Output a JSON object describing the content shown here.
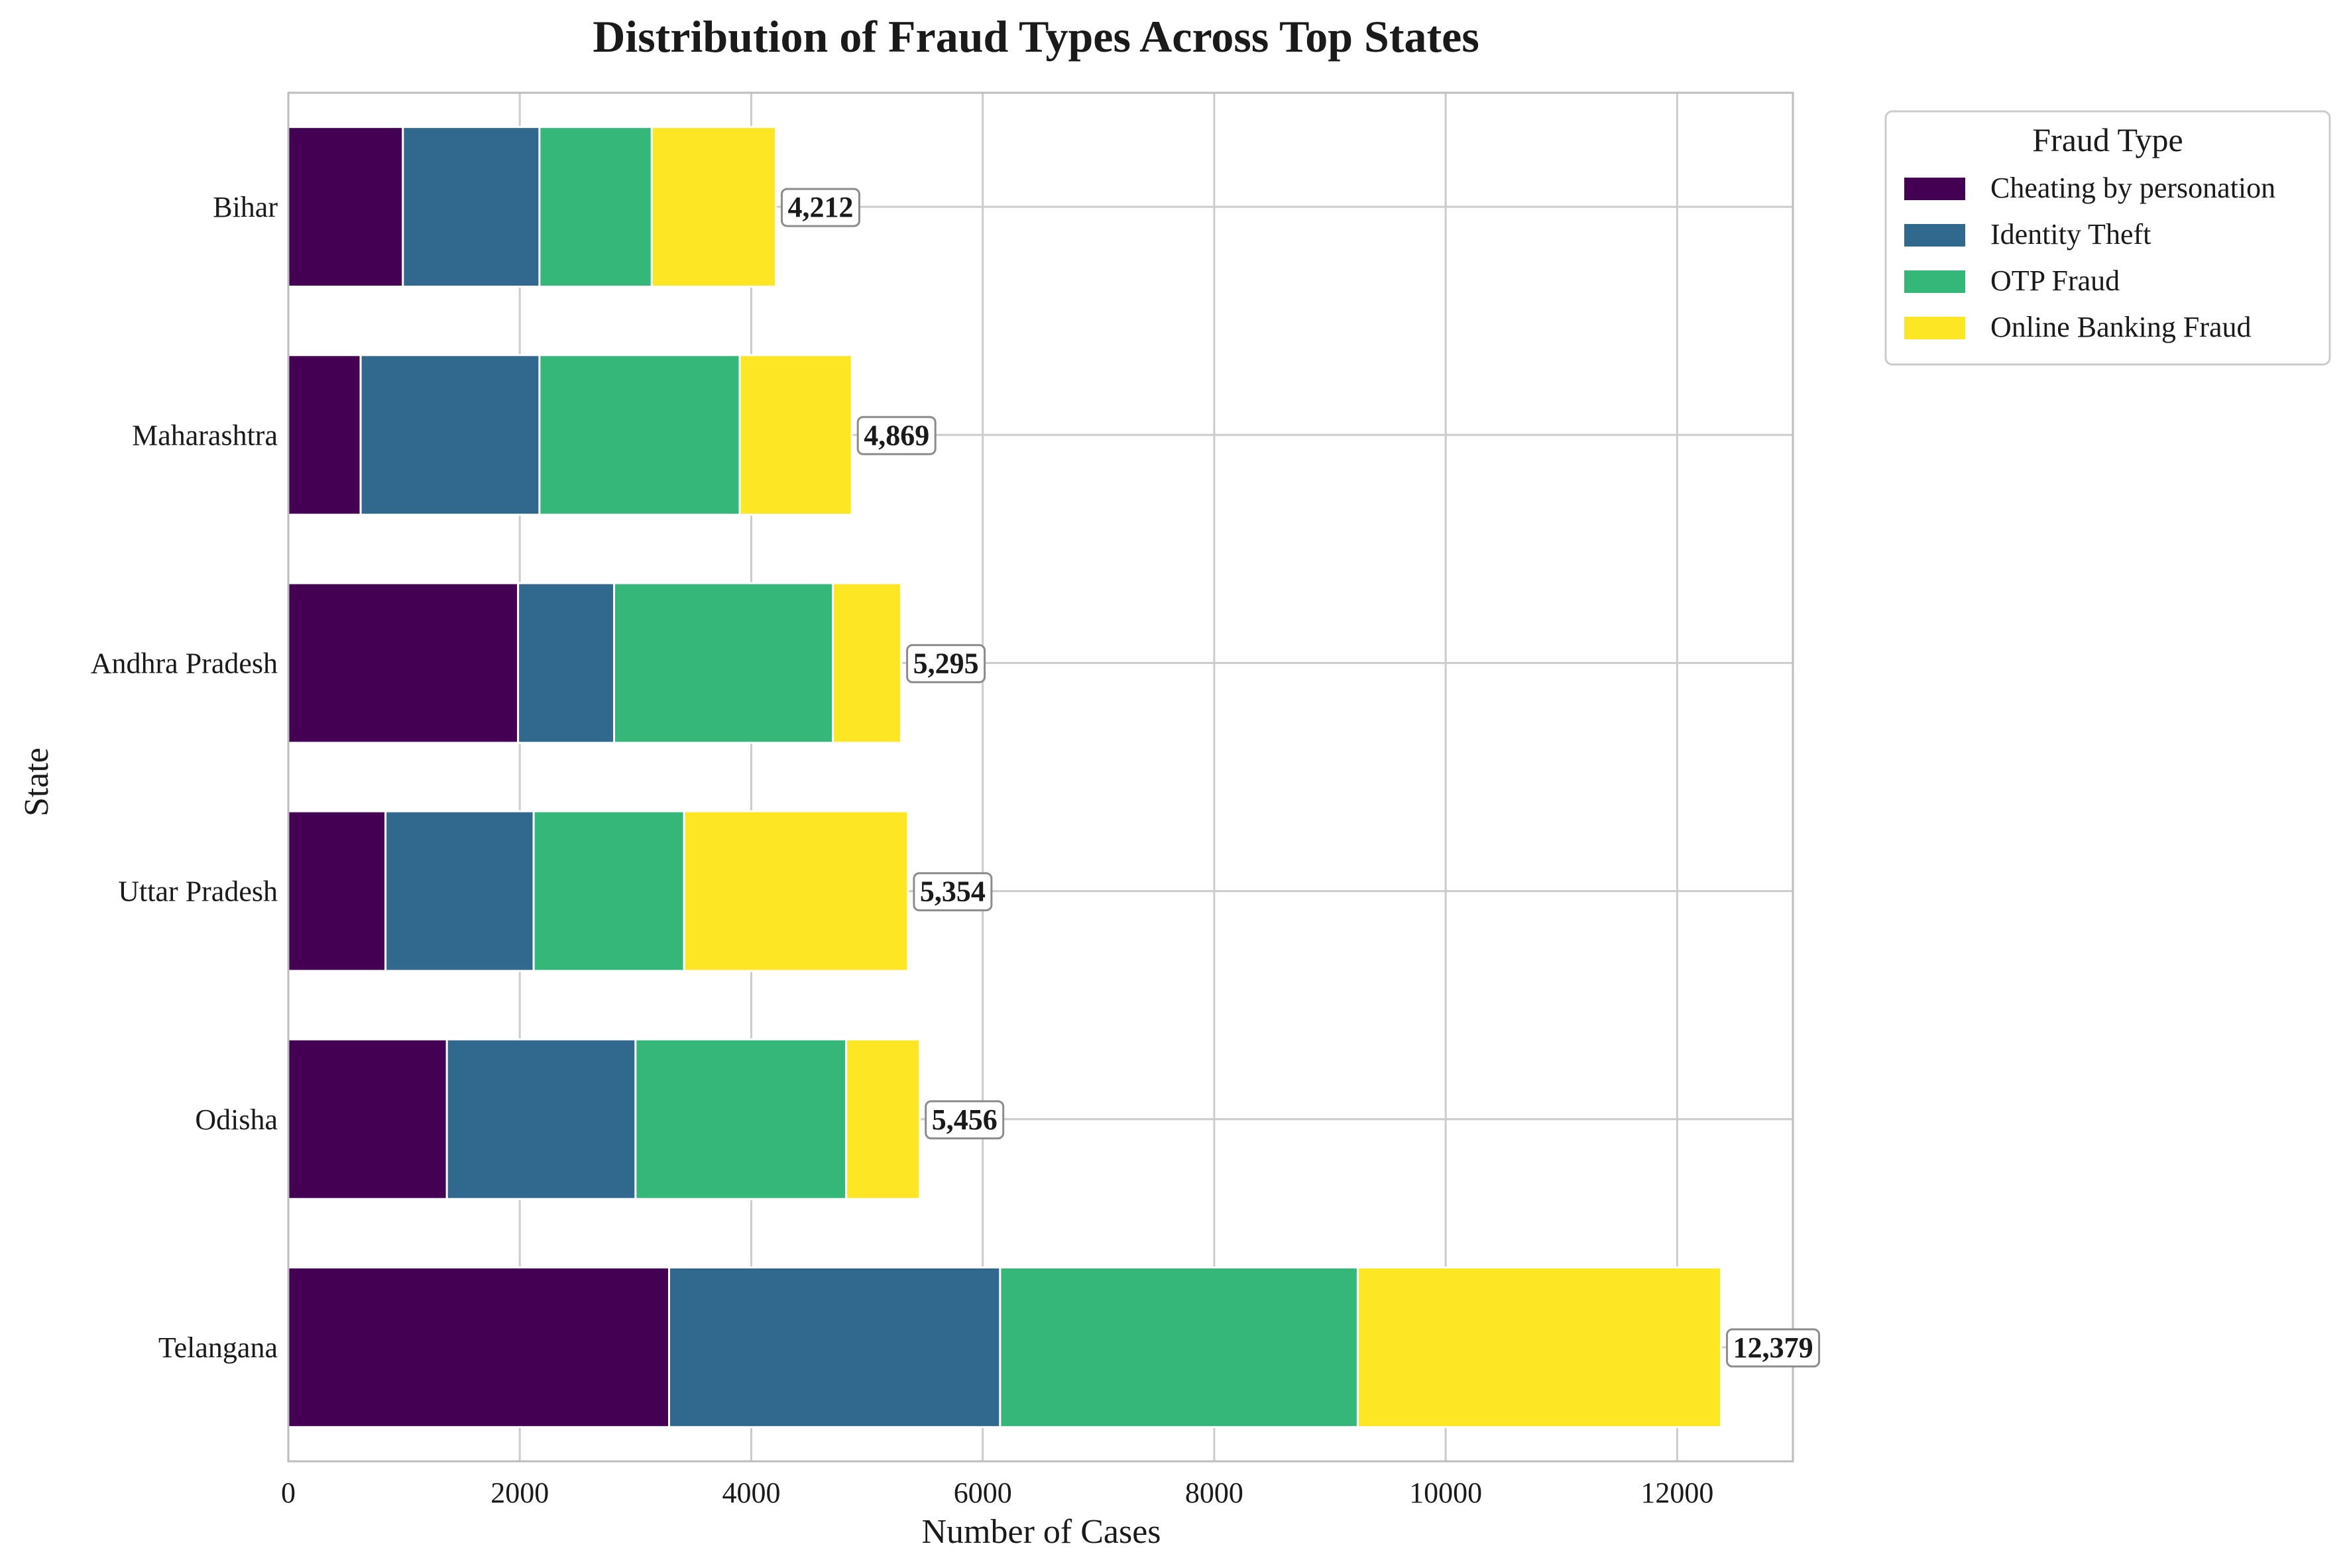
{
  "chart_data": {
    "type": "bar",
    "orientation": "horizontal",
    "stacked": true,
    "title": "Distribution of Fraud Types Across Top States",
    "xlabel": "Number of Cases",
    "ylabel": "State",
    "xlim": [
      0,
      13000
    ],
    "xticks": [
      0,
      2000,
      4000,
      6000,
      8000,
      10000,
      12000
    ],
    "grid": true,
    "legend": {
      "title": "Fraud Type",
      "placement": "outside top-right"
    },
    "categories": [
      "Telangana",
      "Odisha",
      "Uttar Pradesh",
      "Andhra Pradesh",
      "Maharashtra",
      "Bihar"
    ],
    "series": [
      {
        "name": "Cheating by personation",
        "color": "#440154",
        "values": [
          3290,
          1370,
          840,
          1985,
          625,
          990
        ]
      },
      {
        "name": "Identity Theft",
        "color": "#31688e",
        "values": [
          2860,
          1630,
          1280,
          830,
          1545,
          1180
        ]
      },
      {
        "name": "OTP Fraud",
        "color": "#35b779",
        "values": [
          3090,
          1820,
          1300,
          1890,
          1730,
          970
        ]
      },
      {
        "name": "Online Banking Fraud",
        "color": "#fde725",
        "values": [
          3139,
          636,
          1934,
          590,
          969,
          1072
        ]
      }
    ],
    "totals": [
      12379,
      5456,
      5354,
      5295,
      4869,
      4212
    ],
    "total_labels": [
      "12,379",
      "5,456",
      "5,354",
      "5,295",
      "4,869",
      "4,212"
    ]
  }
}
